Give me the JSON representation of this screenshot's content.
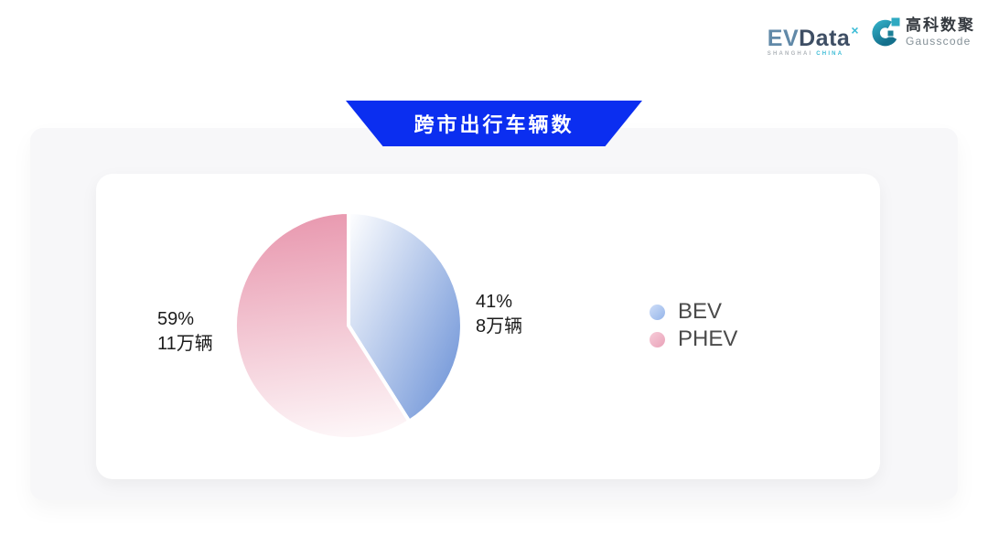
{
  "header": {
    "evdata_logo": {
      "ev": "EV",
      "data": "Data",
      "superscript": "×",
      "subtext_left": "SHANGHAI",
      "subtext_right": "CHINA"
    },
    "gausscode_logo": {
      "cn": "高科数聚",
      "en": "Gausscode",
      "icon_colors": [
        "#1b7f97",
        "#2fa9c1"
      ]
    }
  },
  "banner": {
    "title": "跨市出行车辆数",
    "color": "#0b2ef0",
    "text_color": "#ffffff"
  },
  "chart_data": {
    "type": "pie",
    "title": "跨市出行车辆数",
    "unit": "万辆",
    "start_angle_deg": 0,
    "clockwise": true,
    "legend_position": "right",
    "legend": [
      "BEV",
      "PHEV"
    ],
    "slices": [
      {
        "label": "BEV",
        "percent": 41,
        "value": 8,
        "percent_text": "41%",
        "value_text": "8万辆",
        "color_start": "#ffffff",
        "color_end": "#7095d8",
        "marker_colors": [
          "#cfdef8",
          "#94b4e9"
        ]
      },
      {
        "label": "PHEV",
        "percent": 59,
        "value": 11,
        "percent_text": "59%",
        "value_text": "11万辆",
        "color_start": "#e897ae",
        "color_end": "#fdf5f7",
        "marker_colors": [
          "#f7ccd9",
          "#e9a2b8"
        ]
      }
    ]
  }
}
